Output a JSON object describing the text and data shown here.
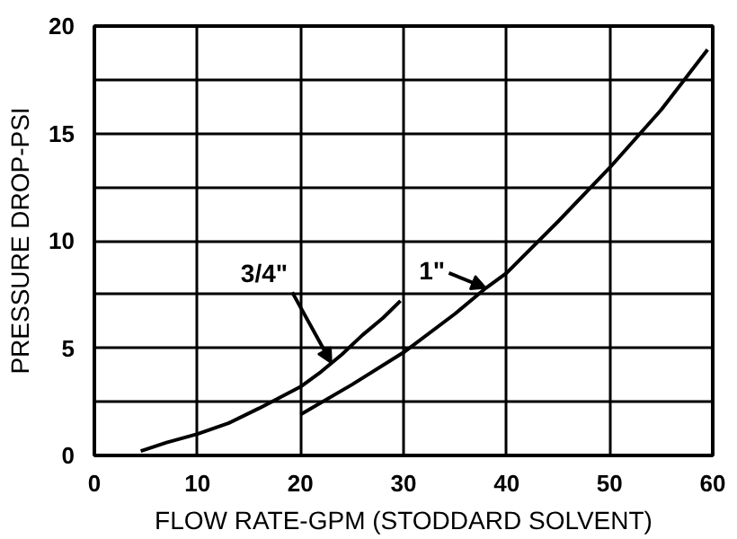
{
  "chart_data": {
    "type": "line",
    "xlabel": "FLOW RATE-GPM (STODDARD SOLVENT)",
    "ylabel": "PRESSURE DROP-PSI",
    "series": [
      {
        "color": "#000000",
        "x": [
          4.5,
          7,
          10,
          13,
          16,
          20,
          22,
          23,
          24,
          26,
          28,
          29.7
        ],
        "values": [
          0.2,
          0.6,
          1.0,
          1.5,
          2.2,
          3.2,
          3.9,
          4.3,
          4.7,
          5.6,
          6.4,
          7.2
        ]
      },
      {
        "color": "#000000",
        "x": [
          20,
          25,
          30,
          35,
          38,
          40,
          45,
          50,
          55,
          59.5
        ],
        "values": [
          1.9,
          3.3,
          4.8,
          6.6,
          7.8,
          8.5,
          10.9,
          13.4,
          16.1,
          18.9
        ]
      }
    ],
    "annotations": [
      {
        "text": "3/4\"",
        "x": 23,
        "y": 4.3
      },
      {
        "text": "1\"",
        "x": 38,
        "y": 7.8
      }
    ],
    "xlim": [
      0,
      60
    ],
    "xticks": [
      0,
      10,
      20,
      30,
      40,
      50,
      60
    ],
    "ylim": [
      0,
      20
    ],
    "yticks": [
      0,
      {
        "value": 2.5,
        "label": null
      },
      5,
      {
        "value": 7.5,
        "label": null
      },
      10,
      {
        "value": 12.5,
        "label": null
      },
      15,
      {
        "value": 17.5,
        "label": null
      },
      20
    ],
    "grid": true,
    "line_style": "solid",
    "marker": "none"
  }
}
